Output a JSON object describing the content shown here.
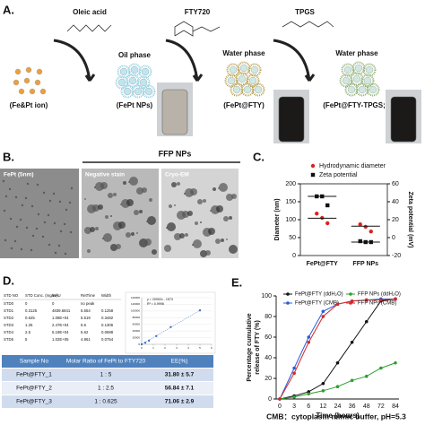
{
  "panels": {
    "a": "A.",
    "b": "B.",
    "c": "C.",
    "d": "D.",
    "e": "E."
  },
  "scheme": {
    "reagents": [
      "Oleic acid",
      "FTY720",
      "TPGS"
    ],
    "phases": [
      "Oil phase",
      "Water phase",
      "Water phase"
    ],
    "products": [
      "(Fe&Pt ion)",
      "(FePt NPs)",
      "(FePt@FTY)",
      "(FePt@FTY-TPGS; FFP)"
    ]
  },
  "tem": {
    "title": "FFP NPs",
    "labels": [
      "FePt (5nm)",
      "Negative stain",
      "Cryo-EM"
    ]
  },
  "std_table": {
    "header": [
      "STD NO",
      "STD Conc. (mg/ml)",
      "mAU",
      "RetTime",
      "Width"
    ],
    "rows": [
      [
        "STD0",
        "0",
        "0",
        "no peak",
        ""
      ],
      [
        "STD1",
        "0.3125",
        "4839.6841",
        "5.654",
        "0.1258"
      ],
      [
        "STD2",
        "0.625",
        "1.08E+04",
        "5.519",
        "0.3482"
      ],
      [
        "STD3",
        "1.25",
        "2.47E+04",
        "5.6",
        "0.1306"
      ],
      [
        "STD4",
        "2.5",
        "5.19E+04",
        "5.62",
        "0.0688"
      ],
      [
        "STD5",
        "5",
        "1.02E+05",
        "4.861",
        "0.0754"
      ]
    ]
  },
  "ee_table": {
    "header": [
      "Sample No",
      "Molar Ratio of FePt to FTY720",
      "EE(%)"
    ],
    "rows": [
      [
        "FePt@FTY_1",
        "1 : 5",
        "31.80 ± 5.7"
      ],
      [
        "FePt@FTY_2",
        "1 : 2.5",
        "56.84 ± 7.1"
      ],
      [
        "FePt@FTY_3",
        "1 : 0.625",
        "71.06 ± 2.9"
      ]
    ]
  },
  "footnote": "CMB：cytoplasm mimic buffer, pH=5.3",
  "chart_data": [
    {
      "type": "dot",
      "ylabel": "Diameter (nm)",
      "y2label": "Zeta potential (mV)",
      "categories": [
        "FePt@FTY",
        "FFP NPs"
      ],
      "ylim": [
        0,
        200
      ],
      "yticks": [
        0,
        50,
        100,
        150,
        200
      ],
      "y2lim": [
        -20,
        60
      ],
      "y2ticks": [
        -20,
        0,
        20,
        40,
        60
      ],
      "series": [
        {
          "name": "Hydrodynamic diameter",
          "color": "#e02020",
          "marker": "circle",
          "values": [
            [
              117,
              105,
              90
            ],
            [
              87,
              80,
              67
            ]
          ],
          "means": [
            104,
            82
          ]
        },
        {
          "name": "Zeta potential",
          "color": "#111111",
          "marker": "square",
          "axis": "y2",
          "values": [
            [
              46,
              46,
              36
            ],
            [
              -4,
              -5,
              -5
            ]
          ],
          "means": [
            46,
            -5
          ]
        }
      ]
    },
    {
      "type": "line",
      "xlabel": "Time (hours)",
      "ylabel": [
        "Percentage cumulative",
        "release of FTY (%)"
      ],
      "categories": [
        "0",
        "3",
        "6",
        "12",
        "24",
        "36",
        "48",
        "72",
        "84"
      ],
      "ylim": [
        0,
        100
      ],
      "yticks": [
        0,
        20,
        40,
        60,
        80,
        100
      ],
      "series": [
        {
          "name": "FePt@FTY (ddH₂O)",
          "color": "#111111",
          "values": [
            0,
            3,
            7,
            15,
            35,
            55,
            75,
            95,
            97
          ]
        },
        {
          "name": "FFP NPs (ddH₂O)",
          "color": "#2ca02c",
          "values": [
            0,
            2,
            5,
            8,
            12,
            18,
            22,
            30,
            35
          ]
        },
        {
          "name": "FePt@FTY (CMB)",
          "color": "#2a5cd8",
          "values": [
            0,
            30,
            60,
            85,
            92,
            95,
            96,
            97,
            97
          ]
        },
        {
          "name": "FFP NPs (CMB)",
          "color": "#d62728",
          "values": [
            0,
            25,
            55,
            80,
            92,
            95,
            96,
            96,
            97
          ]
        }
      ]
    },
    {
      "type": "scatter",
      "annotations": [
        "y = 20902x - 1573",
        "R² = 0.9996"
      ],
      "x": [
        0,
        0.3125,
        0.625,
        1.25,
        2.5,
        5
      ],
      "y": [
        0,
        4839.6841,
        10800,
        24700,
        51900,
        102000
      ],
      "xlim": [
        0,
        6
      ],
      "xticks": [
        0,
        1,
        2,
        3,
        4,
        5,
        6
      ],
      "ylim": [
        0,
        140000
      ],
      "yticks": [
        0,
        20000,
        40000,
        60000,
        80000,
        100000,
        120000,
        140000
      ],
      "color": "#4472c4"
    }
  ]
}
